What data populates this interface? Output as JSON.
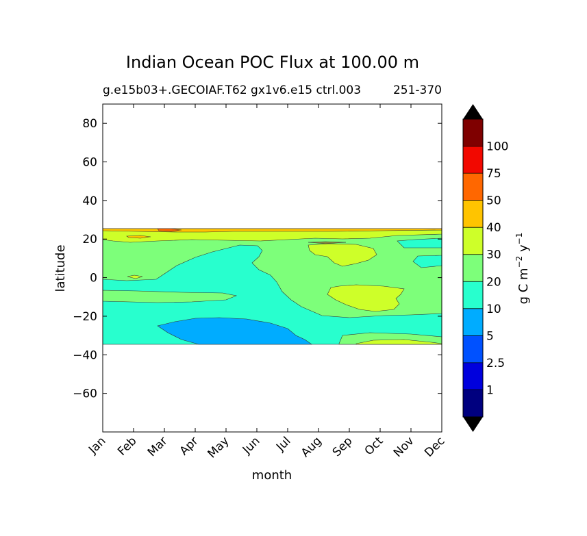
{
  "chart_data": {
    "type": "contour",
    "title": "Indian Ocean POC Flux at 100.00 m",
    "subtitle_left": "g.e15b03+.GECOIAF.T62 gx1v6.e15 ctrl.003",
    "subtitle_right": "251-370",
    "xlabel": "month",
    "ylabel": "latitude",
    "x_categories": [
      "Jan",
      "Feb",
      "Mar",
      "Apr",
      "May",
      "Jun",
      "Jul",
      "Aug",
      "Sep",
      "Oct",
      "Nov",
      "Dec"
    ],
    "yticks": [
      80,
      60,
      40,
      20,
      0,
      -20,
      -40,
      -60
    ],
    "ytick_labels": [
      "80",
      "60",
      "40",
      "20",
      "0",
      "−20",
      "−40",
      "−60"
    ],
    "ylim": [
      -80,
      90
    ],
    "data_lat_range": [
      -34,
      25
    ],
    "colorbar": {
      "label_main": "g C m",
      "label_sup1": "−2",
      "label_mid": " y",
      "label_sup2": "−1",
      "levels": [
        "1",
        "2.5",
        "5",
        "10",
        "20",
        "30",
        "40",
        "50",
        "75",
        "100"
      ],
      "colors": [
        "#00007f",
        "#0000dd",
        "#0051ff",
        "#00acff",
        "#28ffce",
        "#7dff7a",
        "#ceff29",
        "#ffc400",
        "#ff6700",
        "#f20800",
        "#7f0000"
      ],
      "under_color": "#000000",
      "over_color": "#000000"
    },
    "regions": [
      {
        "level": "10-20",
        "color": "#28ffce",
        "band": [
          -34,
          25
        ]
      },
      {
        "level": "20-30",
        "color": "#7dff7a",
        "band": [
          -34,
          25
        ]
      },
      {
        "level": "5-10",
        "color": "#00acff",
        "band": [
          -34,
          -20
        ]
      },
      {
        "level": "30-40",
        "color": "#ceff29",
        "band": [
          -18,
          25
        ]
      },
      {
        "level": "40-50",
        "color": "#ffc400",
        "band": [
          20,
          25
        ]
      },
      {
        "level": "50-75",
        "color": "#ff6700",
        "band": [
          23,
          25
        ]
      }
    ]
  }
}
